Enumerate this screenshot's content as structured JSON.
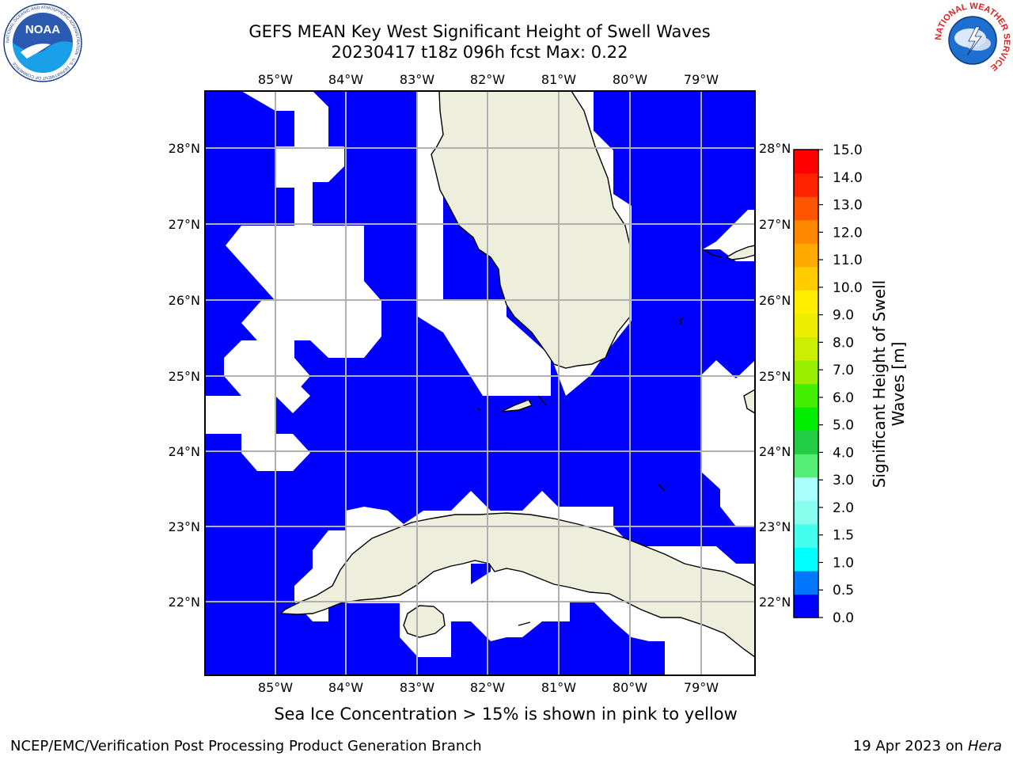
{
  "header": {
    "title_line1": "GEFS MEAN Key West Significant Height of Swell Waves",
    "title_line2": "20230417 t18z 096h fcst   Max: 0.22",
    "noaa_logo_text": "NOAA",
    "noaa_ring_text": "NATIONAL OCEANIC AND ATMOSPHERIC ADMINISTRATION · U.S. DEPARTMENT OF COMMERCE",
    "nws_ring_text": "NATIONAL WEATHER SERVICE"
  },
  "map": {
    "top_lon_labels": [
      "85°W",
      "84°W",
      "83°W",
      "82°W",
      "81°W",
      "80°W",
      "79°W"
    ],
    "bottom_lon_labels": [
      "85°W",
      "84°W",
      "83°W",
      "82°W",
      "81°W",
      "80°W",
      "79°W"
    ],
    "left_lat_labels": [
      "28°N",
      "27°N",
      "26°N",
      "25°N",
      "24°N",
      "23°N",
      "22°N"
    ],
    "right_lat_labels": [
      "28°N",
      "27°N",
      "26°N",
      "25°N",
      "24°N",
      "23°N",
      "22°N"
    ],
    "ocean_color": "#0000ff",
    "land_color": "#eeeedd",
    "missing_color": "#ffffff",
    "grid_color": "#b0b0b0"
  },
  "colorbar": {
    "label": "Significant Height of Swell Waves [m]",
    "tick_labels": [
      "0.0",
      "0.5",
      "1.0",
      "1.5",
      "2.0",
      "3.0",
      "4.0",
      "5.0",
      "6.0",
      "7.0",
      "8.0",
      "9.0",
      "10.0",
      "11.0",
      "12.0",
      "13.0",
      "14.0",
      "15.0"
    ],
    "colors": [
      "#0000ff",
      "#0077ff",
      "#00ffff",
      "#44ffee",
      "#88ffee",
      "#aaffff",
      "#55ee77",
      "#22cc44",
      "#00ee00",
      "#44ee00",
      "#99ee00",
      "#ccee00",
      "#eeee00",
      "#ffee00",
      "#ffcc00",
      "#ffaa00",
      "#ff8800",
      "#ff5500",
      "#ff2200",
      "#ff0000"
    ]
  },
  "notes": {
    "sea_ice": "Sea Ice Concentration > 15% is shown in pink to yellow"
  },
  "footer": {
    "left": "NCEP/EMC/Verification Post Processing Product Generation Branch",
    "right_date": "19 Apr 2023 on ",
    "right_host": "Hera"
  }
}
